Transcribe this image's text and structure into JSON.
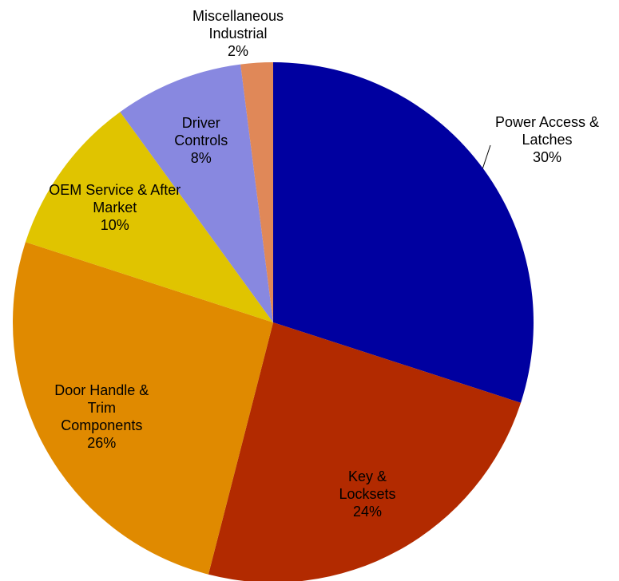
{
  "chart_data": {
    "type": "pie",
    "categories": [
      "Power Access & Latches",
      "Key & Locksets",
      "Door Handle & Trim Components",
      "OEM Service & After Market",
      "Driver Controls",
      "Miscellaneous Industrial"
    ],
    "values": [
      30,
      24,
      26,
      10,
      8,
      2
    ],
    "value_labels": [
      "30%",
      "24%",
      "26%",
      "10%",
      "8%",
      "2%"
    ],
    "colors": [
      "#0000a0",
      "#b22a00",
      "#e08a00",
      "#e0c400",
      "#8888e0",
      "#e08858"
    ]
  }
}
